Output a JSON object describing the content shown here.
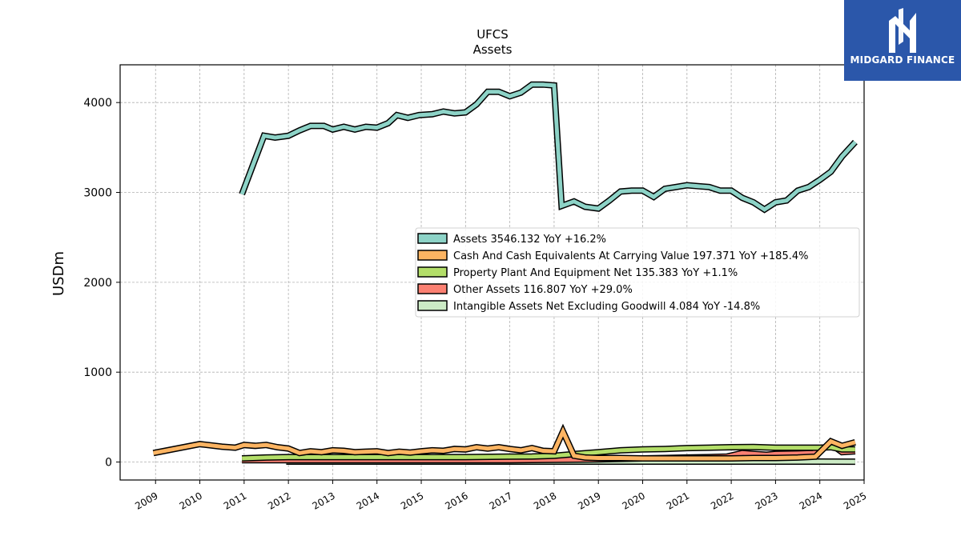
{
  "brand": {
    "name": "MIDGARD FINANCE",
    "color": "#2b57aa",
    "icon": "mf-logo-icon"
  },
  "chart_data": {
    "type": "line",
    "title": "UFCS",
    "subtitle": "Assets",
    "xlabel": "",
    "ylabel": "USDm",
    "ylim": [
      -200,
      4420
    ],
    "xlim": [
      2008.2,
      2025.0
    ],
    "yticks": [
      0,
      1000,
      2000,
      3000,
      4000
    ],
    "xticks": [
      "2009",
      "2010",
      "2011",
      "2012",
      "2013",
      "2014",
      "2015",
      "2016",
      "2017",
      "2018",
      "2019",
      "2020",
      "2021",
      "2022",
      "2023",
      "2024",
      "2025"
    ],
    "grid": true,
    "legend_position": "center-right",
    "series": [
      {
        "name": "Assets",
        "legend": "Assets  3546.132 YoY +16.2%",
        "color": "#8dd3c7",
        "points": [
          [
            2010.95,
            2980
          ],
          [
            2011.45,
            3630
          ],
          [
            2011.7,
            3610
          ],
          [
            2012.0,
            3630
          ],
          [
            2012.25,
            3690
          ],
          [
            2012.5,
            3740
          ],
          [
            2012.8,
            3740
          ],
          [
            2013.0,
            3700
          ],
          [
            2013.25,
            3730
          ],
          [
            2013.5,
            3700
          ],
          [
            2013.75,
            3730
          ],
          [
            2014.0,
            3720
          ],
          [
            2014.25,
            3770
          ],
          [
            2014.45,
            3860
          ],
          [
            2014.7,
            3830
          ],
          [
            2014.95,
            3860
          ],
          [
            2015.25,
            3870
          ],
          [
            2015.5,
            3900
          ],
          [
            2015.75,
            3880
          ],
          [
            2016.0,
            3890
          ],
          [
            2016.25,
            3980
          ],
          [
            2016.5,
            4120
          ],
          [
            2016.75,
            4120
          ],
          [
            2017.0,
            4070
          ],
          [
            2017.25,
            4110
          ],
          [
            2017.5,
            4200
          ],
          [
            2017.75,
            4200
          ],
          [
            2018.0,
            4190
          ],
          [
            2018.17,
            2850
          ],
          [
            2018.45,
            2900
          ],
          [
            2018.7,
            2840
          ],
          [
            2019.0,
            2820
          ],
          [
            2019.25,
            2910
          ],
          [
            2019.5,
            3010
          ],
          [
            2019.75,
            3020
          ],
          [
            2020.0,
            3020
          ],
          [
            2020.25,
            2950
          ],
          [
            2020.5,
            3040
          ],
          [
            2020.75,
            3060
          ],
          [
            2021.0,
            3080
          ],
          [
            2021.25,
            3070
          ],
          [
            2021.5,
            3060
          ],
          [
            2021.75,
            3020
          ],
          [
            2022.0,
            3020
          ],
          [
            2022.25,
            2940
          ],
          [
            2022.5,
            2890
          ],
          [
            2022.75,
            2810
          ],
          [
            2023.0,
            2890
          ],
          [
            2023.25,
            2910
          ],
          [
            2023.5,
            3020
          ],
          [
            2023.75,
            3060
          ],
          [
            2024.0,
            3140
          ],
          [
            2024.25,
            3230
          ],
          [
            2024.5,
            3400
          ],
          [
            2024.8,
            3560
          ]
        ]
      },
      {
        "name": "Cash And Cash Equivalents At Carrying Value",
        "legend": "Cash And Cash Equivalents At Carrying Value  197.371 YoY +185.4%",
        "color": "#fdb462",
        "points": [
          [
            2008.95,
            100
          ],
          [
            2010.0,
            200
          ],
          [
            2010.5,
            170
          ],
          [
            2010.8,
            160
          ],
          [
            2011.0,
            190
          ],
          [
            2011.25,
            180
          ],
          [
            2011.5,
            190
          ],
          [
            2011.75,
            165
          ],
          [
            2012.0,
            150
          ],
          [
            2012.25,
            100
          ],
          [
            2012.5,
            120
          ],
          [
            2012.75,
            110
          ],
          [
            2013.0,
            130
          ],
          [
            2013.25,
            125
          ],
          [
            2013.5,
            110
          ],
          [
            2013.75,
            115
          ],
          [
            2014.0,
            120
          ],
          [
            2014.25,
            100
          ],
          [
            2014.5,
            115
          ],
          [
            2014.75,
            105
          ],
          [
            2015.0,
            120
          ],
          [
            2015.25,
            130
          ],
          [
            2015.5,
            125
          ],
          [
            2015.75,
            145
          ],
          [
            2016.0,
            140
          ],
          [
            2016.25,
            165
          ],
          [
            2016.5,
            150
          ],
          [
            2016.75,
            165
          ],
          [
            2017.0,
            145
          ],
          [
            2017.25,
            130
          ],
          [
            2017.5,
            155
          ],
          [
            2017.75,
            125
          ],
          [
            2018.0,
            120
          ],
          [
            2018.2,
            340
          ],
          [
            2018.45,
            70
          ],
          [
            2018.7,
            50
          ],
          [
            2019.0,
            45
          ],
          [
            2019.5,
            45
          ],
          [
            2020.0,
            40
          ],
          [
            2020.5,
            40
          ],
          [
            2021.0,
            40
          ],
          [
            2021.5,
            40
          ],
          [
            2022.0,
            40
          ],
          [
            2022.5,
            45
          ],
          [
            2023.0,
            45
          ],
          [
            2023.5,
            50
          ],
          [
            2023.9,
            60
          ],
          [
            2024.25,
            230
          ],
          [
            2024.5,
            180
          ],
          [
            2024.8,
            220
          ]
        ]
      },
      {
        "name": "Property Plant And Equipment Net",
        "legend": "Property Plant And Equipment Net  135.383 YoY +1.1%",
        "color": "#b3de69",
        "points": [
          [
            2010.95,
            40
          ],
          [
            2011.5,
            50
          ],
          [
            2012.0,
            55
          ],
          [
            2013.0,
            55
          ],
          [
            2014.0,
            55
          ],
          [
            2015.0,
            55
          ],
          [
            2016.0,
            55
          ],
          [
            2017.0,
            60
          ],
          [
            2017.5,
            62
          ],
          [
            2018.0,
            70
          ],
          [
            2018.5,
            90
          ],
          [
            2019.0,
            110
          ],
          [
            2019.5,
            130
          ],
          [
            2020.0,
            140
          ],
          [
            2020.5,
            145
          ],
          [
            2021.0,
            155
          ],
          [
            2021.5,
            160
          ],
          [
            2022.0,
            165
          ],
          [
            2022.5,
            168
          ],
          [
            2023.0,
            160
          ],
          [
            2023.5,
            160
          ],
          [
            2024.0,
            160
          ],
          [
            2024.25,
            165
          ],
          [
            2024.5,
            140
          ],
          [
            2024.8,
            140
          ]
        ]
      },
      {
        "name": "Other Assets",
        "legend": "Other Assets  116.807 YoY +29.0%",
        "color": "#fb8072",
        "points": [
          [
            2010.95,
            20
          ],
          [
            2012.0,
            20
          ],
          [
            2013.0,
            20
          ],
          [
            2014.0,
            20
          ],
          [
            2015.0,
            20
          ],
          [
            2016.0,
            20
          ],
          [
            2017.0,
            20
          ],
          [
            2018.0,
            25
          ],
          [
            2019.0,
            30
          ],
          [
            2020.0,
            40
          ],
          [
            2020.5,
            45
          ],
          [
            2021.0,
            50
          ],
          [
            2021.5,
            55
          ],
          [
            2021.9,
            60
          ],
          [
            2022.25,
            100
          ],
          [
            2022.5,
            90
          ],
          [
            2022.8,
            80
          ],
          [
            2023.0,
            90
          ],
          [
            2023.5,
            95
          ],
          [
            2023.85,
            100
          ],
          [
            2024.0,
            130
          ],
          [
            2024.25,
            200
          ],
          [
            2024.5,
            110
          ],
          [
            2024.8,
            120
          ]
        ]
      },
      {
        "name": "Intangible Assets Net Excluding Goodwill",
        "legend": "Intangible Assets Net Excluding Goodwill  4.084 YoY -14.8%",
        "color": "#ccebc5",
        "points": [
          [
            2011.95,
            5
          ],
          [
            2013.0,
            5
          ],
          [
            2014.0,
            5
          ],
          [
            2015.0,
            5
          ],
          [
            2016.0,
            5
          ],
          [
            2017.0,
            5
          ],
          [
            2018.0,
            5
          ],
          [
            2019.0,
            5
          ],
          [
            2020.0,
            5
          ],
          [
            2021.0,
            5
          ],
          [
            2022.0,
            5
          ],
          [
            2023.0,
            5
          ],
          [
            2024.0,
            5
          ],
          [
            2024.8,
            4
          ]
        ]
      }
    ]
  }
}
